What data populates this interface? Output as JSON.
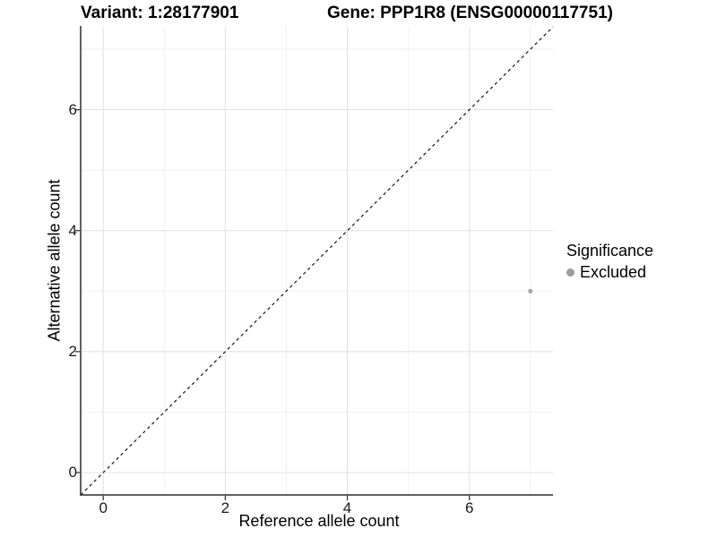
{
  "header": {
    "variant_title": "Variant: 1:28177901",
    "gene_title": "Gene: PPP1R8 (ENSG00000117751)"
  },
  "chart_data": {
    "type": "scatter",
    "xlabel": "Reference allele count",
    "ylabel": "Alternative allele count",
    "xlim": [
      -0.37,
      7.37
    ],
    "ylim": [
      -0.37,
      7.37
    ],
    "x_major_ticks": [
      0,
      2,
      4,
      6
    ],
    "y_major_ticks": [
      0,
      2,
      4,
      6
    ],
    "x_minor_gridlines": [
      1,
      3,
      5,
      7
    ],
    "y_minor_gridlines": [
      1,
      3,
      5,
      7
    ],
    "grid": "on",
    "reference_line": {
      "type": "identity-diagonal",
      "slope": 1,
      "intercept": 0,
      "style": "dashed",
      "color": "#141414"
    },
    "series": [
      {
        "name": "Excluded",
        "color": "#a8a8a8",
        "point_radius": 2.6,
        "points": [
          {
            "x": 7,
            "y": 3
          }
        ]
      }
    ],
    "legend": {
      "title": "Significance",
      "position": "right",
      "items": [
        {
          "label": "Excluded",
          "color": "#9e9e9e"
        }
      ]
    }
  },
  "colors": {
    "background": "#ffffff",
    "grid_major": "#e3e3e3",
    "grid_minor": "#efefef",
    "axis_line": "#2b2b2b",
    "tick_text": "#1a1a1a",
    "point_gray": "#a8a8a8"
  }
}
